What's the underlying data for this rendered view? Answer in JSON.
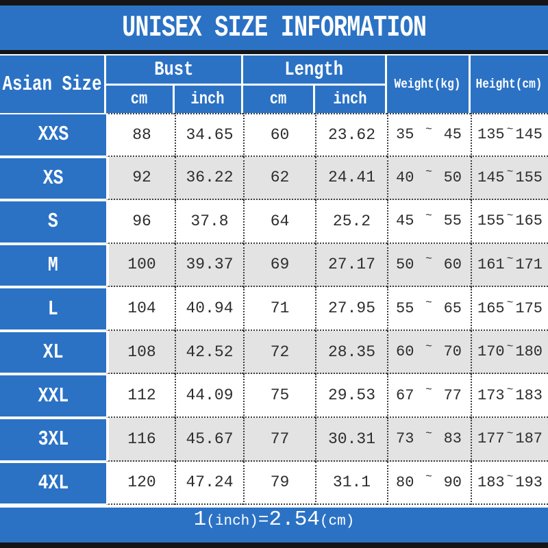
{
  "chart_data": {
    "type": "table",
    "title": "UNISEX SIZE INFORMATION",
    "corner_header": "Asian Size",
    "column_groups": [
      {
        "label": "Bust",
        "sub": [
          "cm",
          "inch"
        ]
      },
      {
        "label": "Length",
        "sub": [
          "cm",
          "inch"
        ]
      }
    ],
    "weight_header": "Weight(kg)",
    "height_header": "Height(cm)",
    "range_separator": "~",
    "rows": [
      {
        "size": "XXS",
        "bust_cm": "88",
        "bust_inch": "34.65",
        "length_cm": "60",
        "length_inch": "23.62",
        "weight_min": "35",
        "weight_max": "45",
        "height_min": "135",
        "height_max": "145"
      },
      {
        "size": "XS",
        "bust_cm": "92",
        "bust_inch": "36.22",
        "length_cm": "62",
        "length_inch": "24.41",
        "weight_min": "40",
        "weight_max": "50",
        "height_min": "145",
        "height_max": "155"
      },
      {
        "size": "S",
        "bust_cm": "96",
        "bust_inch": "37.8",
        "length_cm": "64",
        "length_inch": "25.2",
        "weight_min": "45",
        "weight_max": "55",
        "height_min": "155",
        "height_max": "165"
      },
      {
        "size": "M",
        "bust_cm": "100",
        "bust_inch": "39.37",
        "length_cm": "69",
        "length_inch": "27.17",
        "weight_min": "50",
        "weight_max": "60",
        "height_min": "161",
        "height_max": "171"
      },
      {
        "size": "L",
        "bust_cm": "104",
        "bust_inch": "40.94",
        "length_cm": "71",
        "length_inch": "27.95",
        "weight_min": "55",
        "weight_max": "65",
        "height_min": "165",
        "height_max": "175"
      },
      {
        "size": "XL",
        "bust_cm": "108",
        "bust_inch": "42.52",
        "length_cm": "72",
        "length_inch": "28.35",
        "weight_min": "60",
        "weight_max": "70",
        "height_min": "170",
        "height_max": "180"
      },
      {
        "size": "XXL",
        "bust_cm": "112",
        "bust_inch": "44.09",
        "length_cm": "75",
        "length_inch": "29.53",
        "weight_min": "67",
        "weight_max": "77",
        "height_min": "173",
        "height_max": "183"
      },
      {
        "size": "3XL",
        "bust_cm": "116",
        "bust_inch": "45.67",
        "length_cm": "77",
        "length_inch": "30.31",
        "weight_min": "73",
        "weight_max": "83",
        "height_min": "177",
        "height_max": "187"
      },
      {
        "size": "4XL",
        "bust_cm": "120",
        "bust_inch": "47.24",
        "length_cm": "79",
        "length_inch": "31.1",
        "weight_min": "80",
        "weight_max": "90",
        "height_min": "183",
        "height_max": "193"
      }
    ],
    "footnote": "1(inch)=2.54(cm)",
    "footnote_parts": {
      "value_1": "1",
      "unit_1": "(inch)",
      "equals": "=",
      "value_2": "2.54",
      "unit_2": "(cm)"
    }
  },
  "colors": {
    "blue": "#2b72c5",
    "stripe": "#e3e3e3",
    "frame_black": "#151515",
    "text_dark": "#2d2d2d",
    "white": "#ffffff"
  }
}
